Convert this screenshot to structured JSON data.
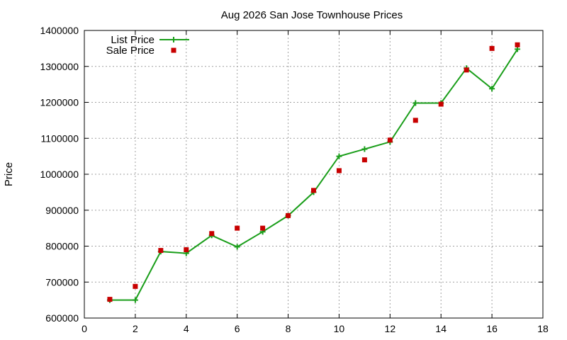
{
  "chart_data": {
    "type": "line",
    "title": "Aug 2026 San Jose Townhouse Prices",
    "xlabel": "",
    "ylabel": "Price",
    "xlim": [
      0,
      18
    ],
    "ylim": [
      600000,
      1400000
    ],
    "xticks": [
      "0",
      "2",
      "4",
      "6",
      "8",
      "10",
      "12",
      "14",
      "16",
      "18"
    ],
    "yticks": [
      "600000",
      "700000",
      "800000",
      "900000",
      "1000000",
      "1100000",
      "1200000",
      "1300000",
      "1400000"
    ],
    "grid": true,
    "legend_position": "top-left",
    "series": [
      {
        "name": "List Price",
        "style": "line-with-plus-markers",
        "color": "#1a9e1a",
        "x": [
          1,
          2,
          3,
          4,
          5,
          6,
          7,
          8,
          9,
          10,
          11,
          12,
          13,
          14,
          15,
          16,
          17
        ],
        "values": [
          650000,
          650000,
          785000,
          780000,
          830000,
          798000,
          840000,
          885000,
          950000,
          1050000,
          1070000,
          1090000,
          1198000,
          1198000,
          1295000,
          1238000,
          1348000
        ]
      },
      {
        "name": "Sale Price",
        "style": "square-markers",
        "color": "#c80000",
        "x": [
          1,
          2,
          3,
          4,
          5,
          6,
          7,
          8,
          9,
          10,
          11,
          12,
          13,
          14,
          15,
          16,
          17
        ],
        "values": [
          652000,
          688000,
          788000,
          790000,
          835000,
          850000,
          850000,
          885000,
          955000,
          1010000,
          1040000,
          1095000,
          1150000,
          1195000,
          1290000,
          1350000,
          1360000
        ]
      }
    ]
  }
}
